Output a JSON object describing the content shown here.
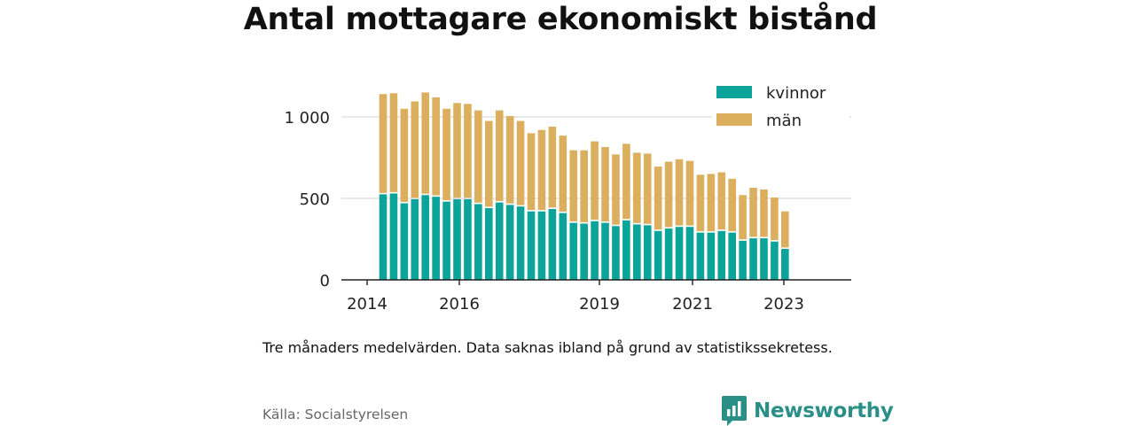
{
  "title": "Antal mottagare ekonomiskt bistånd",
  "note": "Tre månaders medelvärden. Data saknas ibland på grund av statistikssekretess.",
  "source": "Källa: Socialstyrelsen",
  "brand": {
    "name": "Newsworthy",
    "logo_icon": "bar-chart-icon",
    "color": "#2a8f87"
  },
  "chart_data": {
    "type": "bar",
    "stacked": true,
    "x_tick_labels": [
      "2014",
      "2016",
      "2019",
      "2021",
      "2023"
    ],
    "y_tick_labels": [
      "0",
      "500",
      "1 000"
    ],
    "ylim": [
      0,
      1200
    ],
    "grid": true,
    "legend_position": "top-right",
    "series": [
      {
        "name": "kvinnor",
        "color": "#0ba39a",
        "values": [
          525,
          530,
          470,
          495,
          520,
          510,
          480,
          495,
          495,
          465,
          440,
          475,
          460,
          450,
          420,
          420,
          435,
          410,
          350,
          345,
          360,
          350,
          330,
          365,
          340,
          335,
          300,
          315,
          325,
          325,
          290,
          290,
          300,
          290,
          240,
          255,
          255,
          235,
          190
        ]
      },
      {
        "name": "män",
        "color": "#dcaf5e",
        "values": [
          615,
          615,
          580,
          600,
          630,
          610,
          570,
          590,
          585,
          575,
          535,
          565,
          545,
          525,
          480,
          500,
          505,
          475,
          445,
          450,
          490,
          465,
          440,
          470,
          440,
          440,
          395,
          410,
          415,
          405,
          355,
          360,
          360,
          330,
          280,
          310,
          300,
          270,
          230
        ]
      }
    ]
  }
}
